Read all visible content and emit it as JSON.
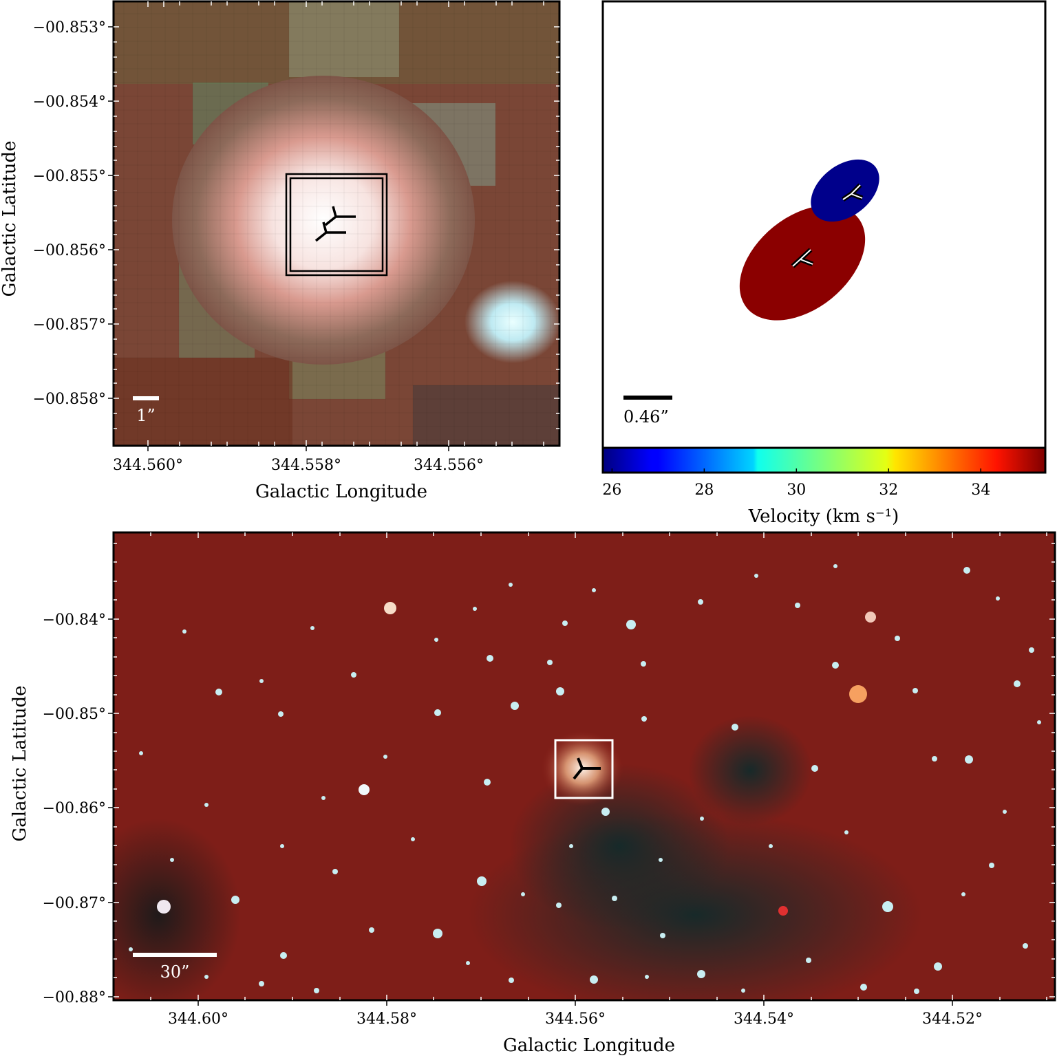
{
  "figure": {
    "panel_a": {
      "xlabel": "Galactic Longitude",
      "ylabel": "Galactic Latitude",
      "x_ticks": [
        "344.560°",
        "344.558°",
        "344.556°"
      ],
      "y_ticks": [
        "−00.853°",
        "−00.854°",
        "−00.855°",
        "−00.856°",
        "−00.857°",
        "−00.858°"
      ],
      "scalebar_label": "1”"
    },
    "panel_b": {
      "scalebar_label": "0.46”",
      "colorbar_label": "Velocity (km s⁻¹)",
      "colorbar_ticks": [
        "26",
        "28",
        "30",
        "32",
        "34"
      ],
      "colorbar_range": [
        25.8,
        35.4
      ],
      "components": [
        {
          "velocity_kms": 26,
          "color": "#00008b"
        },
        {
          "velocity_kms": 35,
          "color": "#8b0000"
        }
      ]
    },
    "panel_c": {
      "xlabel": "Galactic Longitude",
      "ylabel": "Galactic Latitude",
      "x_ticks": [
        "344.60°",
        "344.58°",
        "344.56°",
        "344.54°",
        "344.52°"
      ],
      "y_ticks": [
        "−00.84°",
        "−00.85°",
        "−00.86°",
        "−00.87°",
        "−00.88°"
      ],
      "scalebar_label": "30”"
    }
  }
}
